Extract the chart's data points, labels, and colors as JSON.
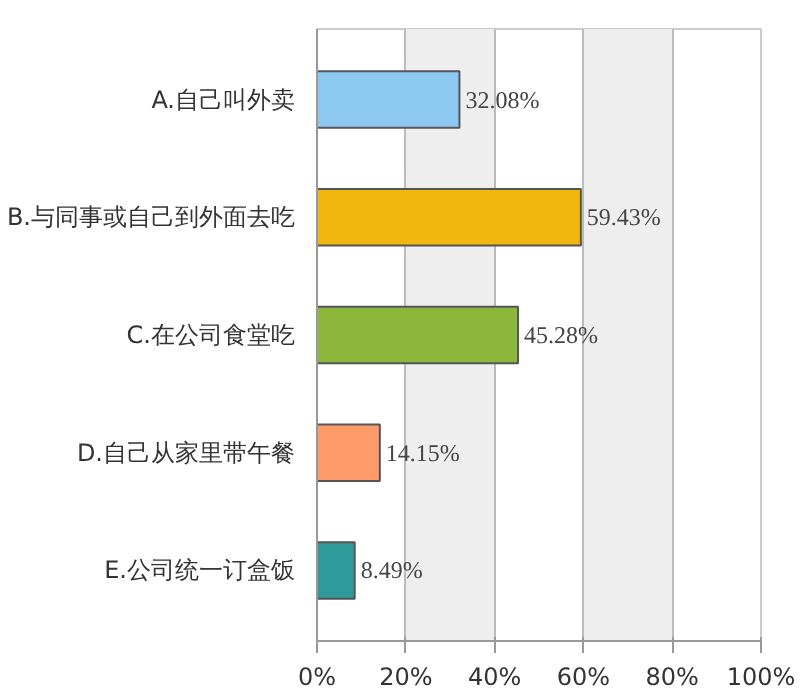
{
  "chart_data": {
    "type": "bar",
    "orientation": "horizontal",
    "categories": [
      "A.自己叫外卖",
      "B.与同事或自己到外面去吃",
      "C.在公司食堂吃",
      "D.自己从家里带午餐",
      "E.公司统一订盒饭"
    ],
    "values": [
      32.08,
      59.43,
      45.28,
      14.15,
      8.49
    ],
    "colors": [
      "#8cc8f0",
      "#f2b70f",
      "#8bb83a",
      "#ff9a6a",
      "#2f9a9a"
    ],
    "value_labels": [
      "32.08%",
      "59.43%",
      "45.28%",
      "14.15%",
      "8.49%"
    ],
    "xlim": [
      0,
      100
    ],
    "xticks": [
      {
        "value": 0,
        "label": "0%"
      },
      {
        "value": 20,
        "label": "20%"
      },
      {
        "value": 40,
        "label": "40%"
      },
      {
        "value": 60,
        "label": "60%"
      },
      {
        "value": 80,
        "label": "80%"
      },
      {
        "value": 100,
        "label": "100%"
      }
    ],
    "grid": "x"
  }
}
